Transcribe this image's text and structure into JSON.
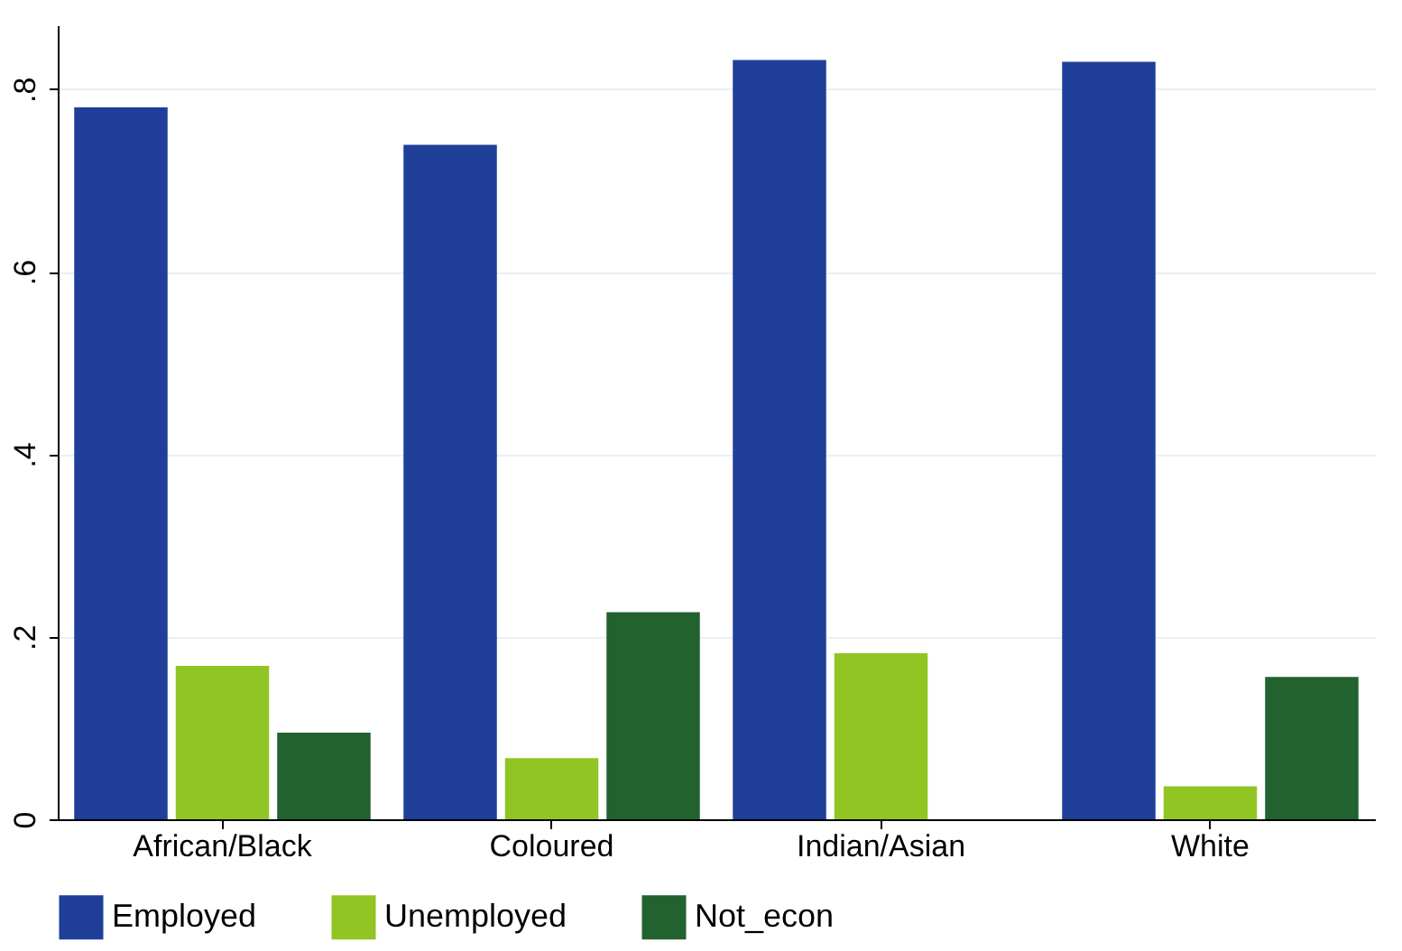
{
  "chart_data": {
    "type": "bar",
    "categories": [
      "African/Black",
      "Coloured",
      "Indian/Asian",
      "White"
    ],
    "series": [
      {
        "name": "Employed",
        "color": "#1f3f99",
        "values": [
          0.78,
          0.739,
          0.832,
          0.83
        ]
      },
      {
        "name": "Unemployed",
        "color": "#90c524",
        "values": [
          0.168,
          0.067,
          0.182,
          0.036
        ]
      },
      {
        "name": "Not_econ",
        "color": "#22622f",
        "values": [
          0.095,
          0.227,
          null,
          0.156
        ]
      }
    ],
    "ylim": [
      0,
      0.87
    ],
    "yticks": [
      {
        "value": 0,
        "label": "0"
      },
      {
        "value": 0.2,
        "label": ".2"
      },
      {
        "value": 0.4,
        "label": ".4"
      },
      {
        "value": 0.6,
        "label": ".6"
      },
      {
        "value": 0.8,
        "label": ".8"
      }
    ],
    "grid": "y",
    "legend": "bottom"
  }
}
